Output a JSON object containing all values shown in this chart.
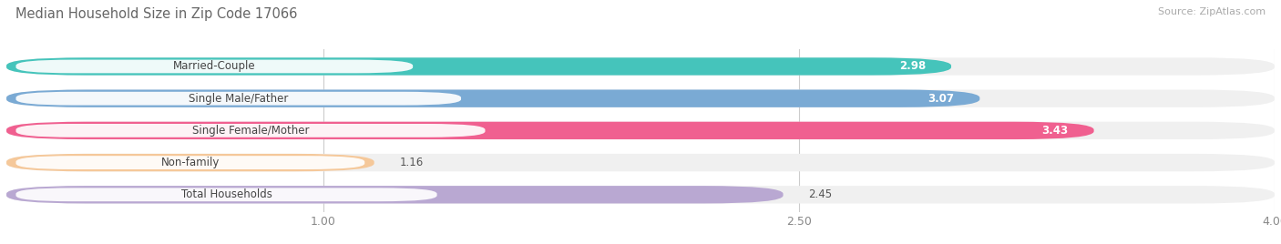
{
  "title": "Median Household Size in Zip Code 17066",
  "source": "Source: ZipAtlas.com",
  "categories": [
    "Married-Couple",
    "Single Male/Father",
    "Single Female/Mother",
    "Non-family",
    "Total Households"
  ],
  "values": [
    2.98,
    3.07,
    3.43,
    1.16,
    2.45
  ],
  "bar_colors": [
    "#45c4bb",
    "#7aaad4",
    "#f06090",
    "#f5c89a",
    "#b9a8d2"
  ],
  "xlim": [
    0.0,
    4.0
  ],
  "xticks": [
    1.0,
    2.5,
    4.0
  ],
  "background_color": "#ffffff",
  "bar_bg_color": "#f0f0f0",
  "title_fontsize": 10.5,
  "source_fontsize": 8,
  "label_fontsize": 8.5,
  "value_fontsize": 8.5,
  "tick_fontsize": 9
}
